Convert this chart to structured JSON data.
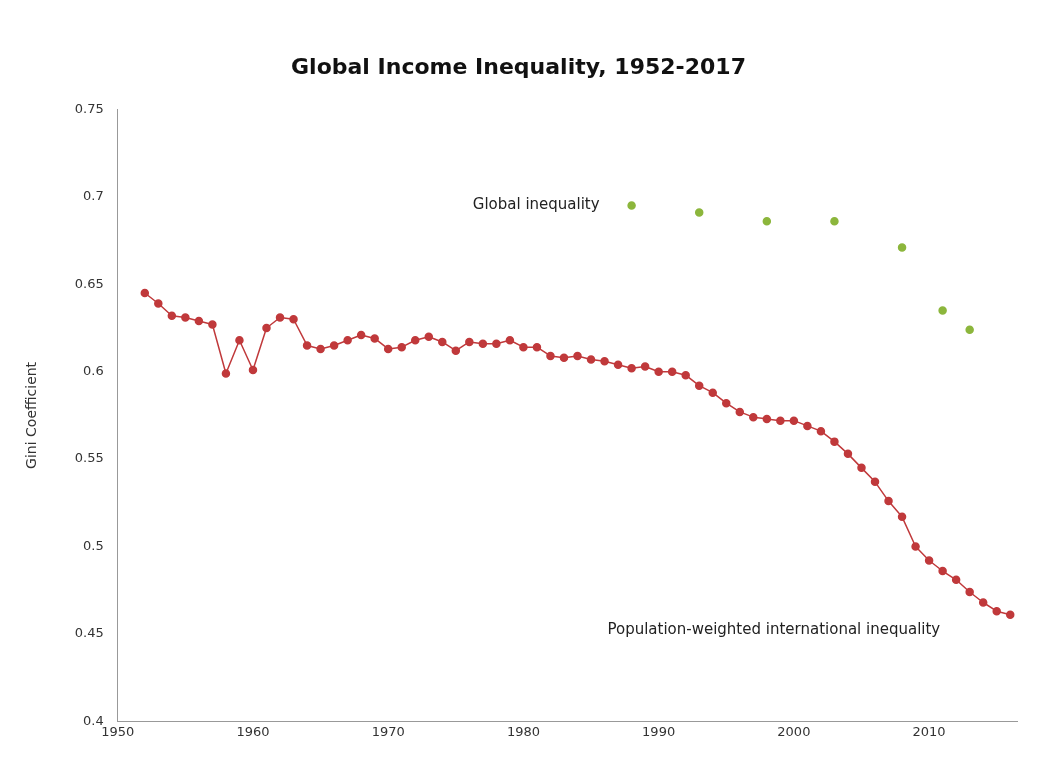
{
  "chart_data": {
    "type": "line",
    "title": "Global Income Inequality, 1952-2017",
    "ylabel": "Gini Coefficient",
    "xlim": [
      1950,
      2016.5
    ],
    "xticks": [
      1950,
      1960,
      1970,
      1980,
      1990,
      2000,
      2010
    ],
    "ylim": [
      0.4,
      0.75
    ],
    "yticks": [
      0.4,
      0.45,
      0.5,
      0.55,
      0.6,
      0.65,
      0.7,
      0.75
    ],
    "grid": false,
    "legend": false,
    "marker": "circle",
    "line_style": "solid",
    "series": [
      {
        "name": "Population-weighted international inequality",
        "type": "line",
        "color": "#c0393b",
        "x": [
          1952,
          1953,
          1954,
          1955,
          1956,
          1957,
          1958,
          1959,
          1960,
          1961,
          1962,
          1963,
          1964,
          1965,
          1966,
          1967,
          1968,
          1969,
          1970,
          1971,
          1972,
          1973,
          1974,
          1975,
          1976,
          1977,
          1978,
          1979,
          1980,
          1981,
          1982,
          1983,
          1984,
          1985,
          1986,
          1987,
          1988,
          1989,
          1990,
          1991,
          1992,
          1993,
          1994,
          1995,
          1996,
          1997,
          1998,
          1999,
          2000,
          2001,
          2002,
          2003,
          2004,
          2005,
          2006,
          2007,
          2008,
          2009,
          2010,
          2011,
          2012,
          2013,
          2014,
          2015,
          2016
        ],
        "values": [
          0.645,
          0.639,
          0.632,
          0.631,
          0.629,
          0.627,
          0.599,
          0.618,
          0.601,
          0.625,
          0.631,
          0.63,
          0.615,
          0.613,
          0.615,
          0.618,
          0.621,
          0.619,
          0.613,
          0.614,
          0.618,
          0.62,
          0.617,
          0.612,
          0.617,
          0.616,
          0.616,
          0.618,
          0.614,
          0.614,
          0.609,
          0.608,
          0.609,
          0.607,
          0.606,
          0.604,
          0.602,
          0.603,
          0.6,
          0.6,
          0.598,
          0.592,
          0.588,
          0.582,
          0.577,
          0.574,
          0.573,
          0.572,
          0.572,
          0.569,
          0.566,
          0.56,
          0.553,
          0.545,
          0.537,
          0.526,
          0.517,
          0.5,
          0.492,
          0.486,
          0.481,
          0.474,
          0.468,
          0.463,
          0.461
        ]
      },
      {
        "name": "Global inequality",
        "type": "scatter",
        "color": "#8cb63c",
        "x": [
          1988,
          1993,
          1998,
          2003,
          2008,
          2011,
          2013
        ],
        "values": [
          0.695,
          0.691,
          0.686,
          0.686,
          0.671,
          0.635,
          0.624
        ]
      }
    ]
  }
}
